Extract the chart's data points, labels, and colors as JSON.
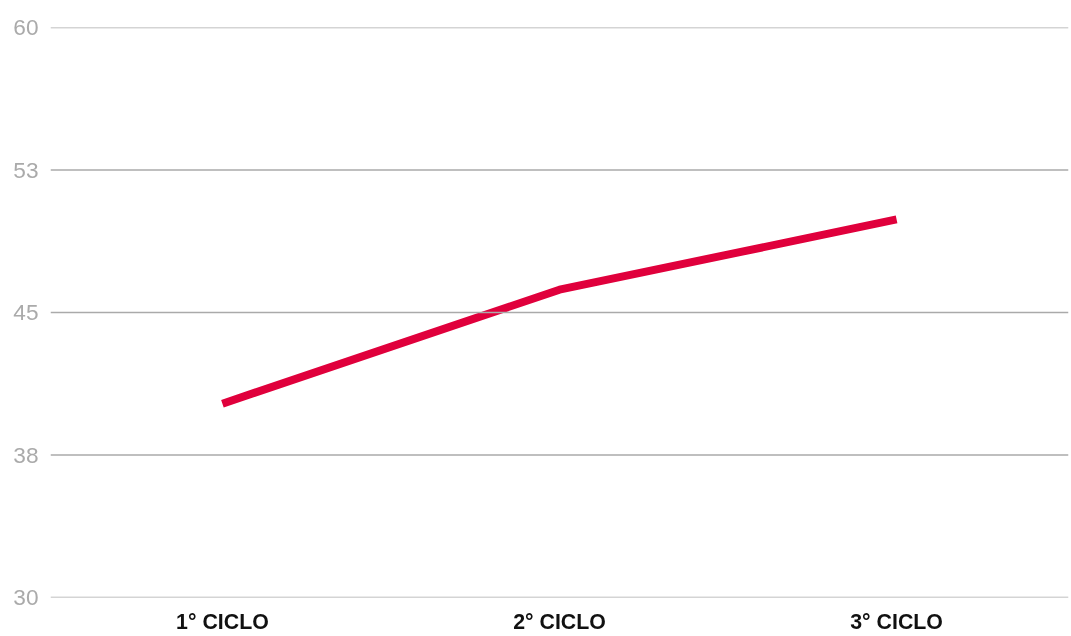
{
  "chart_data": {
    "type": "line",
    "categories": [
      "1° CICLO",
      "2° CICLO",
      "3° CICLO"
    ],
    "series": [
      {
        "color": "#e0003c",
        "values": [
          40.2,
          46.2,
          49.9
        ]
      }
    ],
    "ylim": [
      30,
      60
    ],
    "yticks": [
      30,
      {
        "value": 37.5,
        "label": "38"
      },
      45,
      {
        "value": 52.5,
        "label": "53"
      },
      60
    ],
    "grid": "y",
    "marker": "none",
    "line_style": "solid"
  }
}
